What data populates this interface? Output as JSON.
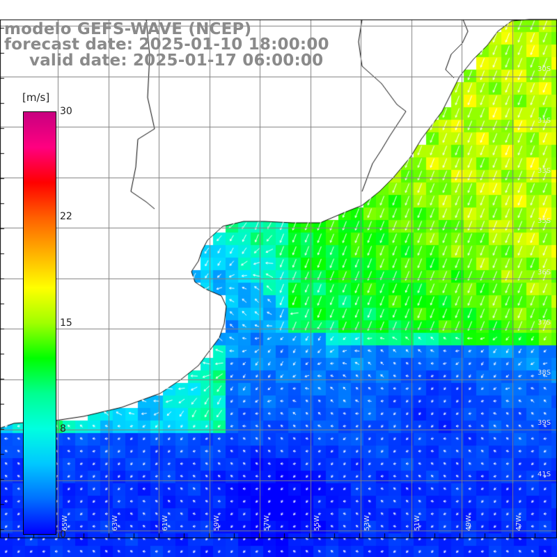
{
  "header": {
    "model": "modelo GEFS-WAVE (NCEP)",
    "forecast_date": "forecast date: 2025-01-10 18:00:00",
    "valid_date": "valid date: 2025-01-17 06:00:00"
  },
  "colorbar": {
    "unit": "[m/s]",
    "min": 0,
    "max": 30,
    "ticks": [
      {
        "label": "30",
        "value": 30
      },
      {
        "label": "22",
        "value": 22
      },
      {
        "label": "15",
        "value": 15
      },
      {
        "label": "8",
        "value": 8
      },
      {
        "label": "0",
        "value": 0
      }
    ],
    "colors": [
      "#0000ff",
      "#0070ff",
      "#00c8ff",
      "#00ffe0",
      "#00ff90",
      "#00ff00",
      "#a0ff00",
      "#ffff00",
      "#ffb000",
      "#ff6000",
      "#ff0000",
      "#ff0080",
      "#c80080"
    ]
  },
  "map": {
    "field": "wind speed at 10 m with direction arrows",
    "land_color": "#ffffff",
    "grid_color": "#808080",
    "coast_color": "#000000",
    "lat_labels": [
      "30S",
      "31S",
      "33S",
      "35S",
      "36S",
      "37S",
      "38S",
      "39S",
      "41S"
    ],
    "lon_labels": [
      "65W",
      "63W",
      "61W",
      "59W",
      "57W",
      "55W",
      "53W",
      "51W",
      "49W",
      "47W"
    ]
  }
}
